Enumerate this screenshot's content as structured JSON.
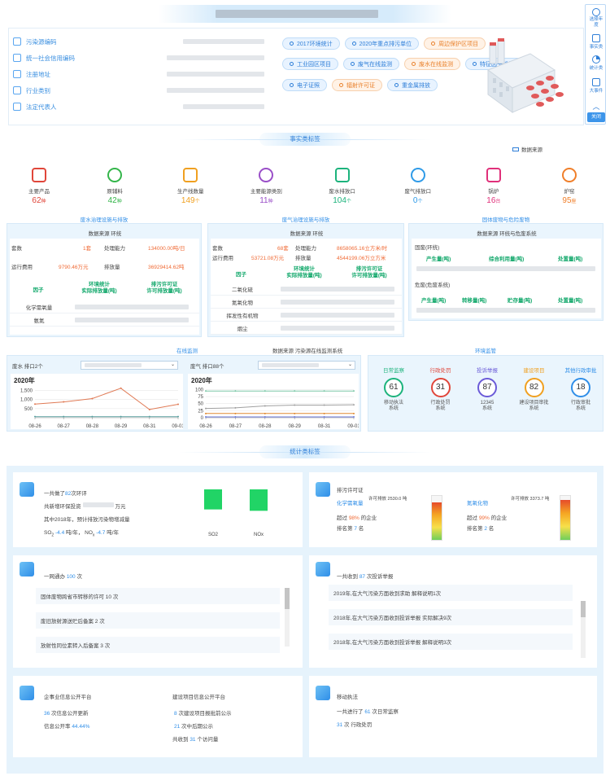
{
  "header": {
    "info_labels": [
      "污染源编码",
      "统一社会信用编码",
      "注册地址",
      "行业类别",
      "法定代表人"
    ],
    "chips_row1": [
      {
        "label": "2017环境统计",
        "tone": "b"
      },
      {
        "label": "2020年重点排污单位",
        "tone": "b"
      },
      {
        "label": "周边保护区项目",
        "tone": "o"
      }
    ],
    "chips_row2": [
      {
        "label": "工业园区项目",
        "tone": "b"
      },
      {
        "label": "废气在线监测",
        "tone": "b"
      },
      {
        "label": "废水在线监测",
        "tone": "o"
      },
      {
        "label": "特征因子排放项目",
        "tone": "b"
      }
    ],
    "chips_row3": [
      {
        "label": "电子证照",
        "tone": "b"
      },
      {
        "label": "辐射许可证",
        "tone": "o"
      },
      {
        "label": "重金属排放",
        "tone": "b"
      }
    ]
  },
  "sidebar": {
    "items": [
      "选择年度",
      "事实类",
      "统计类",
      "大事件"
    ],
    "close": "关闭"
  },
  "facts": {
    "tag": "事实类标签",
    "source_label": "数据来源",
    "items": [
      {
        "label": "主要产品",
        "value": "62",
        "unit": "种",
        "color": "#e0463a"
      },
      {
        "label": "原辅料",
        "value": "42",
        "unit": "种",
        "color": "#34b54a"
      },
      {
        "label": "生产线数量",
        "value": "149",
        "unit": "个",
        "color": "#f0a020"
      },
      {
        "label": "主要能源类别",
        "value": "11",
        "unit": "种",
        "color": "#9a4fc8"
      },
      {
        "label": "废水排放口",
        "value": "104",
        "unit": "个",
        "color": "#1cb37c"
      },
      {
        "label": "废气排放口",
        "value": "0",
        "unit": "个",
        "color": "#2f9be8"
      },
      {
        "label": "锅炉",
        "value": "16",
        "unit": "台",
        "color": "#e0307a"
      },
      {
        "label": "炉窑",
        "value": "95",
        "unit": "座",
        "color": "#f07f2a"
      }
    ]
  },
  "water": {
    "title": "废水治理设施与排放",
    "source": "数据来源 环统",
    "sets_label": "套数",
    "sets_value": "1套",
    "capacity_label": "处理能力",
    "capacity_value": "134000.00吨/日",
    "cost_label": "运行费用",
    "cost_value": "9790.46万元",
    "emission_label": "排放量",
    "emission_value": "36929414.62吨",
    "col1": "因子",
    "col2": "环境统计\n实际排放量(吨)",
    "col3": "排污许可证\n许可排放量(吨)",
    "factors": [
      "化学需氧量",
      "氨氮"
    ]
  },
  "gas": {
    "title": "废气治理设施与排放",
    "source": "数据来源 环统",
    "sets_label": "套数",
    "sets_value": "68套",
    "capacity_label": "处理能力",
    "capacity_value": "8658065.16立方米/时",
    "cost_label": "运行费用",
    "cost_value": "53721.08万元",
    "emission_label": "排放量",
    "emission_value": "4544199.06万立方米",
    "col1": "因子",
    "col2": "环境统计\n实际排放量(吨)",
    "col3": "排污许可证\n许可排放量(吨)",
    "factors": [
      "二氧化硫",
      "氮氧化物",
      "挥发性有机物",
      "烟尘"
    ]
  },
  "solid": {
    "title": "固体废物与危险废物",
    "source": "数据来源 环统与危废系统",
    "general": "固废(环统)",
    "general_cols": [
      "产生量(吨)",
      "综合利用量(吨)",
      "处置量(吨)"
    ],
    "hazard": "危废(危废系统)",
    "hazard_cols": [
      "产生量(吨)",
      "转移量(吨)",
      "贮存量(吨)",
      "处置量(吨)"
    ]
  },
  "online": {
    "title": "在线监测",
    "source": "数据来源 污染源在线监测系统",
    "water_label": "废水 排口2个",
    "gas_label": "废气 排口88个",
    "year": "2020年",
    "x": [
      "08-26",
      "08-27",
      "08-28",
      "08-29",
      "08-31",
      "09-01"
    ]
  },
  "chart_data": [
    {
      "type": "line",
      "title": "2020年",
      "categories": [
        "08-26",
        "08-27",
        "08-28",
        "08-29",
        "08-31",
        "09-01"
      ],
      "ylim": [
        0,
        1700
      ],
      "yticks": [
        500,
        1000,
        1500
      ],
      "ytick_labels": [
        "500",
        "1,000",
        "1,500"
      ],
      "series": [
        {
          "values": [
            750,
            870,
            1050,
            1620,
            450,
            740
          ],
          "color": "#e07a55"
        },
        {
          "values": [
            60,
            60,
            60,
            60,
            60,
            60
          ],
          "color": "#5aa0a0"
        }
      ]
    },
    {
      "type": "line",
      "title": "2020年",
      "categories": [
        "08-26",
        "08-27",
        "08-28",
        "08-29",
        "08-31",
        "09-01"
      ],
      "ylim": [
        0,
        110
      ],
      "yticks": [
        0,
        25,
        50,
        75,
        100
      ],
      "ytick_labels": [
        "0",
        "25",
        "50",
        "75",
        "100"
      ],
      "series": [
        {
          "values": [
            95,
            95,
            95,
            95,
            95,
            95
          ],
          "color": "#7cc8a8"
        },
        {
          "values": [
            33,
            35,
            42,
            45,
            45,
            46
          ],
          "color": "#a0a0a0"
        },
        {
          "values": [
            15,
            15,
            15,
            15,
            15,
            15
          ],
          "color": "#e08a30"
        },
        {
          "values": [
            3,
            3,
            3,
            3,
            3,
            3
          ],
          "color": "#6a7ad8"
        }
      ]
    },
    {
      "type": "bar",
      "categories": [
        "SO2",
        "NOx"
      ],
      "values": [
        -4.4,
        -4.7
      ],
      "ylim": [
        -5,
        0
      ]
    }
  ],
  "supervision": {
    "title": "环境监管",
    "items": [
      {
        "label": "日常监察",
        "value": "61",
        "sub": "移动执法\n系统",
        "color": "#1cb37c"
      },
      {
        "label": "行政处罚",
        "value": "31",
        "sub": "行政处罚\n系统",
        "color": "#e0463a"
      },
      {
        "label": "投诉举报",
        "value": "87",
        "sub": "12345\n系统",
        "color": "#6a5ad8"
      },
      {
        "label": "建设项目",
        "value": "82",
        "sub": "建设项目审批\n系统",
        "color": "#f0a020"
      },
      {
        "label": "其他行政审批",
        "value": "18",
        "sub": "行政审批\n系统",
        "color": "#2f8ee8"
      }
    ]
  },
  "stats": {
    "tag": "统计类标签",
    "env_eval": {
      "line1_pre": "一共做了",
      "line1_num": "82",
      "line1_post": "次环评",
      "line2": "共新增环保投资",
      "line2_unit": "万元",
      "line3": "其中2018年，预计排放污染物增减量",
      "so2_label": "SO",
      "so2_sub": "2",
      "so2_val": "-4.4",
      "unit": "吨/年",
      "nox_label": "NO",
      "nox_sub": "x",
      "nox_val": "-4.7",
      "bar_labels": [
        "SO2",
        "NOx"
      ]
    },
    "permit": {
      "title": "排污许可证",
      "left": {
        "name": "化学需氧量",
        "limit": "许可排放 2530.0 吨",
        "pct": "98%",
        "pct_pre": "超过",
        "pct_post": "的企业",
        "rank_pre": "排名第",
        "rank": "7",
        "rank_post": "名",
        "fill": 0.85
      },
      "right": {
        "name": "氮氧化物",
        "limit": "许可排放 3373.7 吨",
        "pct": "99%",
        "pct_pre": "超过",
        "pct_post": "的企业",
        "rank_pre": "排名第",
        "rank": "2",
        "rank_post": "名",
        "fill": 0.9
      }
    },
    "one_net": {
      "pre": "一网通办",
      "num": "100",
      "post": "次",
      "items": [
        "固体废物跨省市转移的许可 10 次",
        "废旧放射源送贮后备案 2 次",
        "放射性同位素转入后备案 3 次"
      ]
    },
    "complaints": {
      "pre": "一共收到",
      "num": "87",
      "post": "次投诉举报",
      "items": [
        "2019年,在大气污染方面收到求助 解释说明1次",
        "2018年,在大气污染方面收到投诉举报 实际解决9次",
        "2018年,在大气污染方面收到投诉举报 解释说明3次"
      ]
    },
    "disclosure": {
      "title": "企事业信息公开平台",
      "updates_num": "36",
      "updates_text": "次信息公开更新",
      "rate_label": "信息公开率",
      "rate": "44.44%",
      "build_title": "建设项目信息公开平台",
      "b1_num": "8",
      "b1_text": "次建设项目报批前公示",
      "b2_num": "21",
      "b2_text": "次中后期公示",
      "b3_pre": "共收到",
      "b3_num": "31",
      "b3_text": "个访问量"
    },
    "mobile": {
      "title": "移动执法",
      "l1_pre": "一共进行了",
      "l1_num": "61",
      "l1_post": "次日常监察",
      "l2_num": "31",
      "l2_post": "次 行政处罚"
    }
  }
}
